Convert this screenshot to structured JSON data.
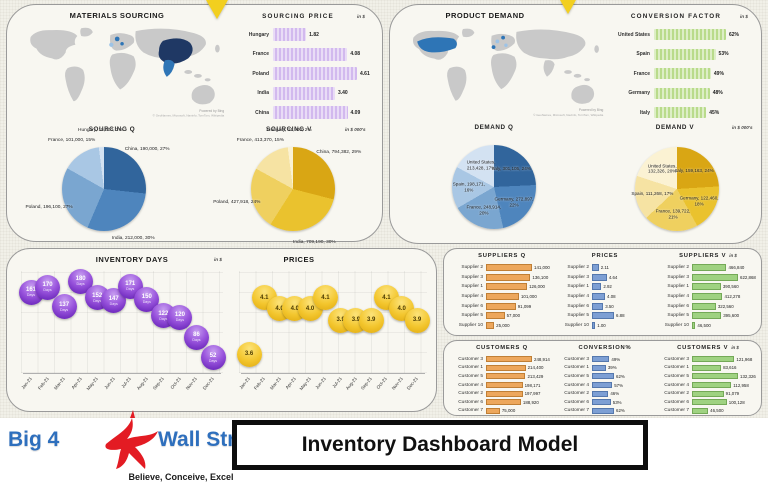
{
  "page": {
    "title": "Inventory Dashboard Model"
  },
  "logo": {
    "name_prefix": "Big 4",
    "name_suffix": "Wall Street",
    "tagline": "Believe, Conceive, Excel"
  },
  "attribution": {
    "line1": "Powered by Bing",
    "line2": "© GeoNames, Microsoft, Navinfo, TomTom, Wikipedia"
  },
  "sections": {
    "materials_sourcing": "MATERIALS SOURCING",
    "product_demand": "PRODUCT DEMAND"
  },
  "chart_data": [
    {
      "id": "sourcing_price",
      "type": "bar",
      "title": "SOURCING PRICE",
      "unit": "in $",
      "categories": [
        "Hungary",
        "France",
        "Poland",
        "India",
        "China"
      ],
      "values": [
        1.82,
        4.08,
        4.61,
        3.4,
        4.09
      ],
      "display": [
        "1.82",
        "4.08",
        "4.61",
        "3.40",
        "4.09"
      ],
      "bar_color": "#d2b9ee",
      "css": "purple"
    },
    {
      "id": "conversion_factor",
      "type": "bar",
      "title": "CONVERSION FACTOR",
      "unit": "in $",
      "categories": [
        "United States",
        "Spain",
        "France",
        "Germany",
        "Italy"
      ],
      "values": [
        62,
        53,
        49,
        48,
        45
      ],
      "display": [
        "62%",
        "53%",
        "49%",
        "48%",
        "45%"
      ],
      "bar_color": "#b9db8b",
      "css": "green"
    },
    {
      "id": "sourcing_q",
      "type": "pie",
      "title": "SOURCING Q",
      "unit": "",
      "label_pos": "outside",
      "slices": [
        {
          "label": "China, 190,000, 27%",
          "value": 27,
          "color": "#31659c"
        },
        {
          "label": "India, 212,000, 30%",
          "value": 30,
          "color": "#4e85bd"
        },
        {
          "label": "Poland, 196,100, 27%",
          "value": 27,
          "color": "#7aa6d0"
        },
        {
          "label": "France, 101,000, 15%",
          "value": 15,
          "color": "#a9c7e4"
        },
        {
          "label": "Hungary, 15,000, 2%",
          "value": 2,
          "color": "#d3e2f2"
        }
      ]
    },
    {
      "id": "sourcing_v",
      "type": "pie",
      "title": "SOURCING V",
      "unit": "in $ 000's",
      "label_pos": "outside",
      "slices": [
        {
          "label": "China, 794,382, 29%",
          "value": 29,
          "color": "#d9a614"
        },
        {
          "label": "India, 709,190, 30%",
          "value": 30,
          "color": "#eac22e"
        },
        {
          "label": "Poland, 427,918, 24%",
          "value": 24,
          "color": "#efd05f"
        },
        {
          "label": "France, 413,370, 15%",
          "value": 15,
          "color": "#f6e3a3"
        },
        {
          "label": "Hungary, 41,900, 2%",
          "value": 2,
          "color": "#fbf2d3"
        }
      ]
    },
    {
      "id": "demand_q",
      "type": "pie",
      "title": "DEMAND Q",
      "unit": "",
      "label_pos": "inside",
      "slices": [
        {
          "label": "Italy, 301,105, 24%",
          "value": 24,
          "color": "#31659c"
        },
        {
          "label": "Germany, 272,897, 22%",
          "value": 22,
          "color": "#4e85bd"
        },
        {
          "label": "France, 248,914, 20%",
          "value": 20,
          "color": "#7aa6d0"
        },
        {
          "label": "Spain, 198,171, 16%",
          "value": 16,
          "color": "#a9c7e4"
        },
        {
          "label": "United States, 213,428, 17%",
          "value": 17,
          "color": "#d3e2f2"
        }
      ]
    },
    {
      "id": "demand_v",
      "type": "pie",
      "title": "DEMAND V",
      "unit": "in $ 000's",
      "label_pos": "inside",
      "slices": [
        {
          "label": "Italy, 159,163, 24%",
          "value": 24,
          "color": "#d9a614"
        },
        {
          "label": "Germany, 122,460, 18%",
          "value": 18,
          "color": "#eac22e"
        },
        {
          "label": "France, 139,722, 21%",
          "value": 21,
          "color": "#efd05f"
        },
        {
          "label": "Spain, 111,268, 17%",
          "value": 17,
          "color": "#f6e3a3"
        },
        {
          "label": "United States, 132,326, 20%",
          "value": 20,
          "color": "#fbf2d3"
        }
      ]
    },
    {
      "id": "inventory_days",
      "type": "scatter",
      "title": "INVENTORY DAYS",
      "unit": "",
      "x": [
        "Jan-21",
        "Feb-21",
        "Mar-21",
        "Apr-21",
        "May-21",
        "Jun-21",
        "Jul-21",
        "Aug-21",
        "Sep-21",
        "Oct-21",
        "Nov-21",
        "Dec-21"
      ],
      "values": [
        161,
        170,
        137,
        180,
        152,
        147,
        171,
        150,
        122,
        120,
        86,
        52
      ],
      "display": [
        "161",
        "170",
        "137",
        "180",
        "152",
        "147",
        "171",
        "150",
        "122",
        "120",
        "86",
        "52"
      ],
      "sub_label": "Days",
      "ylim": [
        30,
        190
      ],
      "css": "purple-bubble"
    },
    {
      "id": "prices_trend",
      "type": "scatter",
      "title": "PRICES",
      "unit": "in $",
      "x": [
        "Jan-21",
        "Feb-21",
        "Mar-21",
        "Apr-21",
        "May-21",
        "Jun-21",
        "Jul-21",
        "Aug-21",
        "Sep-21",
        "Oct-21",
        "Nov-21",
        "Dec-21"
      ],
      "values": [
        3.6,
        4.1,
        4.0,
        4.0,
        4.0,
        4.1,
        3.9,
        3.9,
        3.9,
        4.1,
        4.0,
        3.9
      ],
      "display": [
        "3.6",
        "4.1",
        "4.0",
        "4.0",
        "4.0",
        "4.1",
        "3.9",
        "3.9",
        "3.9",
        "4.1",
        "4.0",
        "3.9"
      ],
      "ylim": [
        3.45,
        4.3
      ],
      "css": "gold-bubble"
    },
    {
      "id": "suppliers_q",
      "type": "table-bar",
      "title": "SUPPLIERS Q",
      "unit": "",
      "css": "orange wide",
      "rows": [
        {
          "label": "Supplier 2",
          "value": 141000,
          "display": "141,000"
        },
        {
          "label": "Supplier 3",
          "value": 136100,
          "display": "136,100"
        },
        {
          "label": "Supplier 1",
          "value": 126000,
          "display": "126,000"
        },
        {
          "label": "Supplier 4",
          "value": 101000,
          "display": "101,000"
        },
        {
          "label": "Supplier 6",
          "value": 91099,
          "display": "91,099"
        },
        {
          "label": "Supplier 5",
          "value": 57000,
          "display": "57,000"
        },
        {
          "label": "Supplier 10",
          "value": 25000,
          "display": "25,000"
        }
      ]
    },
    {
      "id": "supplier_prices",
      "type": "table-bar",
      "title": "PRICES",
      "unit": "",
      "css": "blue narrow",
      "rows": [
        {
          "label": "Supplier 2",
          "value": 2.11,
          "display": "2.11"
        },
        {
          "label": "Supplier 3",
          "value": 4.64,
          "display": "4.64"
        },
        {
          "label": "Supplier 1",
          "value": 2.92,
          "display": "2.92"
        },
        {
          "label": "Supplier 4",
          "value": 4.08,
          "display": "4.08"
        },
        {
          "label": "Supplier 6",
          "value": 3.5,
          "display": "3.50"
        },
        {
          "label": "Supplier 5",
          "value": 6.88,
          "display": "6.88"
        },
        {
          "label": "Supplier 10",
          "value": 1.0,
          "display": "1.00"
        }
      ]
    },
    {
      "id": "suppliers_v",
      "type": "table-bar",
      "title": "SUPPLIERS V",
      "unit": "in $",
      "css": "green2 wide",
      "rows": [
        {
          "label": "Supplier 2",
          "value": 466840,
          "display": "466,840"
        },
        {
          "label": "Supplier 3",
          "value": 622868,
          "display": "622,868"
        },
        {
          "label": "Supplier 1",
          "value": 390560,
          "display": "390,560"
        },
        {
          "label": "Supplier 4",
          "value": 412278,
          "display": "412,278"
        },
        {
          "label": "Supplier 6",
          "value": 322560,
          "display": "322,560"
        },
        {
          "label": "Supplier 5",
          "value": 395600,
          "display": "395,600"
        },
        {
          "label": "Supplier 10",
          "value": 46500,
          "display": "46,500"
        }
      ]
    },
    {
      "id": "customers_q",
      "type": "table-bar",
      "title": "CUSTOMERS Q",
      "unit": "",
      "css": "orange wide",
      "rows": [
        {
          "label": "Customer 3",
          "value": 248914,
          "display": "248,914"
        },
        {
          "label": "Customer 1",
          "value": 214400,
          "display": "214,400"
        },
        {
          "label": "Customer 5",
          "value": 213429,
          "display": "213,429"
        },
        {
          "label": "Customer 4",
          "value": 198171,
          "display": "198,171"
        },
        {
          "label": "Customer 2",
          "value": 197997,
          "display": "197,997"
        },
        {
          "label": "Customer 6",
          "value": 188920,
          "display": "188,920"
        },
        {
          "label": "Customer 7",
          "value": 75000,
          "display": "75,000"
        }
      ]
    },
    {
      "id": "conversion_pct",
      "type": "table-bar",
      "title": "CONVERSION%",
      "unit": "",
      "css": "blue narrow",
      "rows": [
        {
          "label": "Customer 3",
          "value": 49,
          "display": "49%"
        },
        {
          "label": "Customer 1",
          "value": 39,
          "display": "39%"
        },
        {
          "label": "Customer 5",
          "value": 62,
          "display": "62%"
        },
        {
          "label": "Customer 4",
          "value": 57,
          "display": "57%"
        },
        {
          "label": "Customer 2",
          "value": 46,
          "display": "46%"
        },
        {
          "label": "Customer 6",
          "value": 53,
          "display": "53%"
        },
        {
          "label": "Customer 7",
          "value": 62,
          "display": "62%"
        }
      ]
    },
    {
      "id": "customers_v",
      "type": "table-bar",
      "title": "CUSTOMERS V",
      "unit": "in $",
      "css": "green2 wide",
      "rows": [
        {
          "label": "Customer 3",
          "value": 121968,
          "display": "121,968"
        },
        {
          "label": "Customer 1",
          "value": 83616,
          "display": "83,616"
        },
        {
          "label": "Customer 5",
          "value": 132326,
          "display": "132,326"
        },
        {
          "label": "Customer 4",
          "value": 112958,
          "display": "112,958"
        },
        {
          "label": "Customer 2",
          "value": 91079,
          "display": "91,079"
        },
        {
          "label": "Customer 6",
          "value": 100128,
          "display": "100,128"
        },
        {
          "label": "Customer 7",
          "value": 46500,
          "display": "46,500"
        }
      ]
    }
  ]
}
